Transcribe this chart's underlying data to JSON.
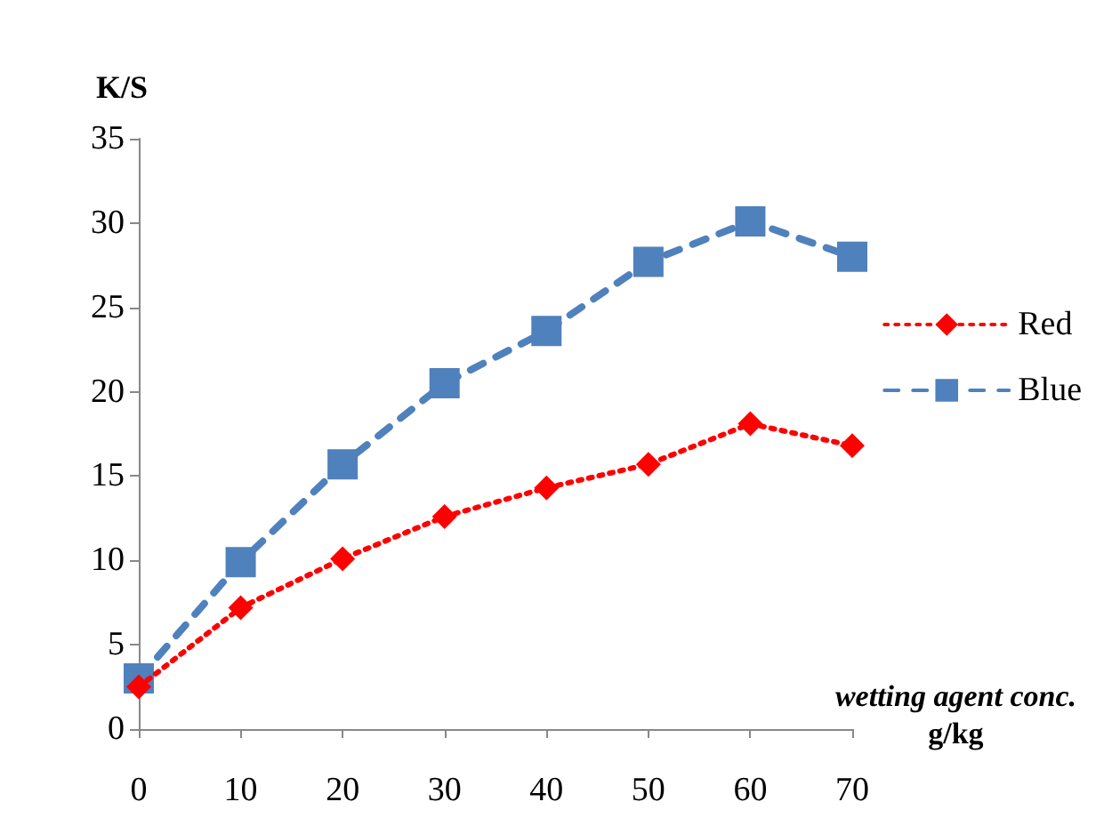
{
  "chart_data": {
    "type": "line",
    "ylabel": "K/S",
    "xlabel": "wetting agent conc.\ng/kg",
    "x": [
      0,
      10,
      20,
      30,
      40,
      50,
      60,
      70
    ],
    "series": [
      {
        "name": "Red",
        "color": "#ff0000",
        "marker": "diamond",
        "line_style": "dotted",
        "values": [
          2.5,
          7.2,
          10.1,
          12.6,
          14.3,
          15.7,
          18.1,
          16.8
        ]
      },
      {
        "name": "Blue",
        "color": "#4f81bd",
        "marker": "square",
        "line_style": "dashed",
        "values": [
          3.0,
          9.9,
          15.7,
          20.5,
          23.6,
          27.7,
          30.1,
          28.0
        ]
      }
    ],
    "xlim": [
      0,
      70
    ],
    "xticks": [
      0,
      10,
      20,
      30,
      40,
      50,
      60,
      70
    ],
    "ylim": [
      0,
      35
    ],
    "yticks": [
      0,
      5,
      10,
      15,
      20,
      25,
      30,
      35
    ],
    "grid": false,
    "legend": "right"
  }
}
